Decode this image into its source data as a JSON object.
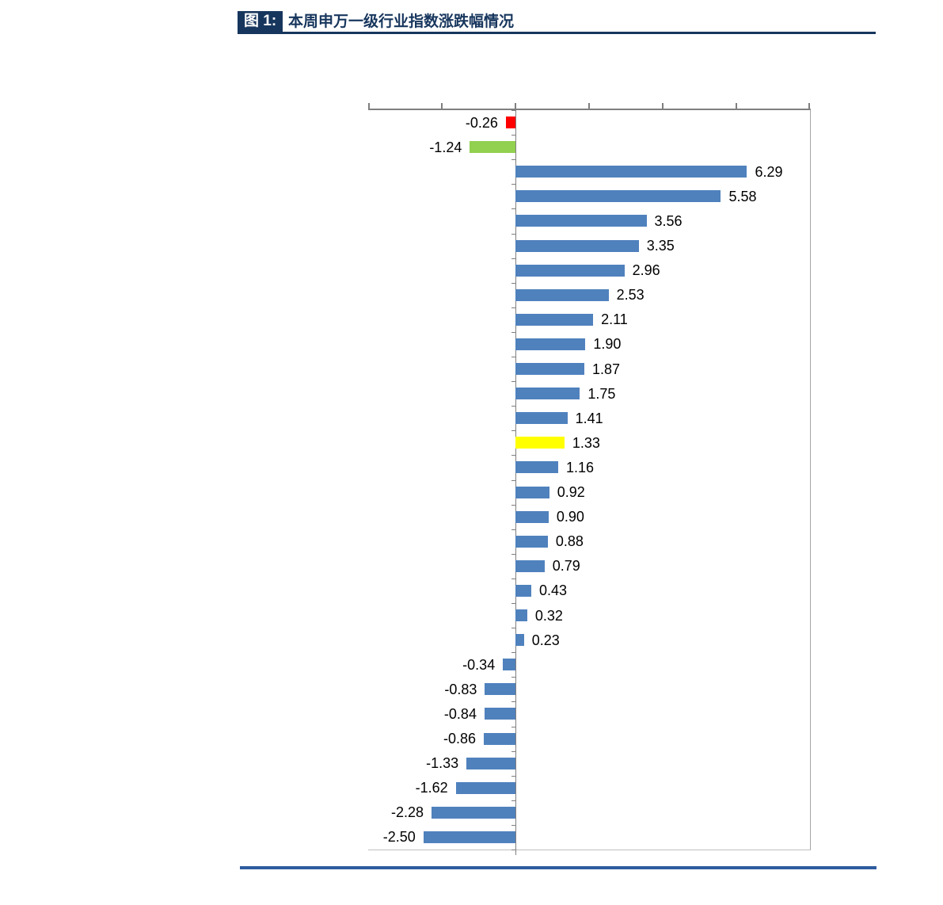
{
  "header": {
    "figure_label": "图 1:",
    "title": "本周申万一级行业指数涨跌幅情况",
    "accent_color": "#17365D"
  },
  "footer": {
    "rule_color": "#2E5C9E"
  },
  "chart_data": {
    "type": "bar",
    "orientation": "horizontal",
    "title": "本周申万一级行业指数涨跌幅情况",
    "value_axis_position": "top",
    "xlim": [
      -4,
      8
    ],
    "x_tick_interval": 2,
    "tick_labels_visible": false,
    "grid": false,
    "legend": "none",
    "axis_color": "#7F7F7F",
    "default_bar_color": "#4F81BD",
    "points": [
      {
        "label": "-0.26",
        "value": -0.26,
        "color": "#FF0000"
      },
      {
        "label": "-1.24",
        "value": -1.24,
        "color": "#92D050"
      },
      {
        "label": "6.29",
        "value": 6.29,
        "color": "#4F81BD"
      },
      {
        "label": "5.58",
        "value": 5.58,
        "color": "#4F81BD"
      },
      {
        "label": "3.56",
        "value": 3.56,
        "color": "#4F81BD"
      },
      {
        "label": "3.35",
        "value": 3.35,
        "color": "#4F81BD"
      },
      {
        "label": "2.96",
        "value": 2.96,
        "color": "#4F81BD"
      },
      {
        "label": "2.53",
        "value": 2.53,
        "color": "#4F81BD"
      },
      {
        "label": "2.11",
        "value": 2.11,
        "color": "#4F81BD"
      },
      {
        "label": "1.90",
        "value": 1.9,
        "color": "#4F81BD"
      },
      {
        "label": "1.87",
        "value": 1.87,
        "color": "#4F81BD"
      },
      {
        "label": "1.75",
        "value": 1.75,
        "color": "#4F81BD"
      },
      {
        "label": "1.41",
        "value": 1.41,
        "color": "#4F81BD"
      },
      {
        "label": "1.33",
        "value": 1.33,
        "color": "#FFFF00"
      },
      {
        "label": "1.16",
        "value": 1.16,
        "color": "#4F81BD"
      },
      {
        "label": "0.92",
        "value": 0.92,
        "color": "#4F81BD"
      },
      {
        "label": "0.90",
        "value": 0.9,
        "color": "#4F81BD"
      },
      {
        "label": "0.88",
        "value": 0.88,
        "color": "#4F81BD"
      },
      {
        "label": "0.79",
        "value": 0.79,
        "color": "#4F81BD"
      },
      {
        "label": "0.43",
        "value": 0.43,
        "color": "#4F81BD"
      },
      {
        "label": "0.32",
        "value": 0.32,
        "color": "#4F81BD"
      },
      {
        "label": "0.23",
        "value": 0.23,
        "color": "#4F81BD"
      },
      {
        "label": "-0.34",
        "value": -0.34,
        "color": "#4F81BD"
      },
      {
        "label": "-0.83",
        "value": -0.83,
        "color": "#4F81BD"
      },
      {
        "label": "-0.84",
        "value": -0.84,
        "color": "#4F81BD"
      },
      {
        "label": "-0.86",
        "value": -0.86,
        "color": "#4F81BD"
      },
      {
        "label": "-1.33",
        "value": -1.33,
        "color": "#4F81BD"
      },
      {
        "label": "-1.62",
        "value": -1.62,
        "color": "#4F81BD"
      },
      {
        "label": "-2.28",
        "value": -2.28,
        "color": "#4F81BD"
      },
      {
        "label": "-2.50",
        "value": -2.5,
        "color": "#4F81BD"
      }
    ]
  }
}
